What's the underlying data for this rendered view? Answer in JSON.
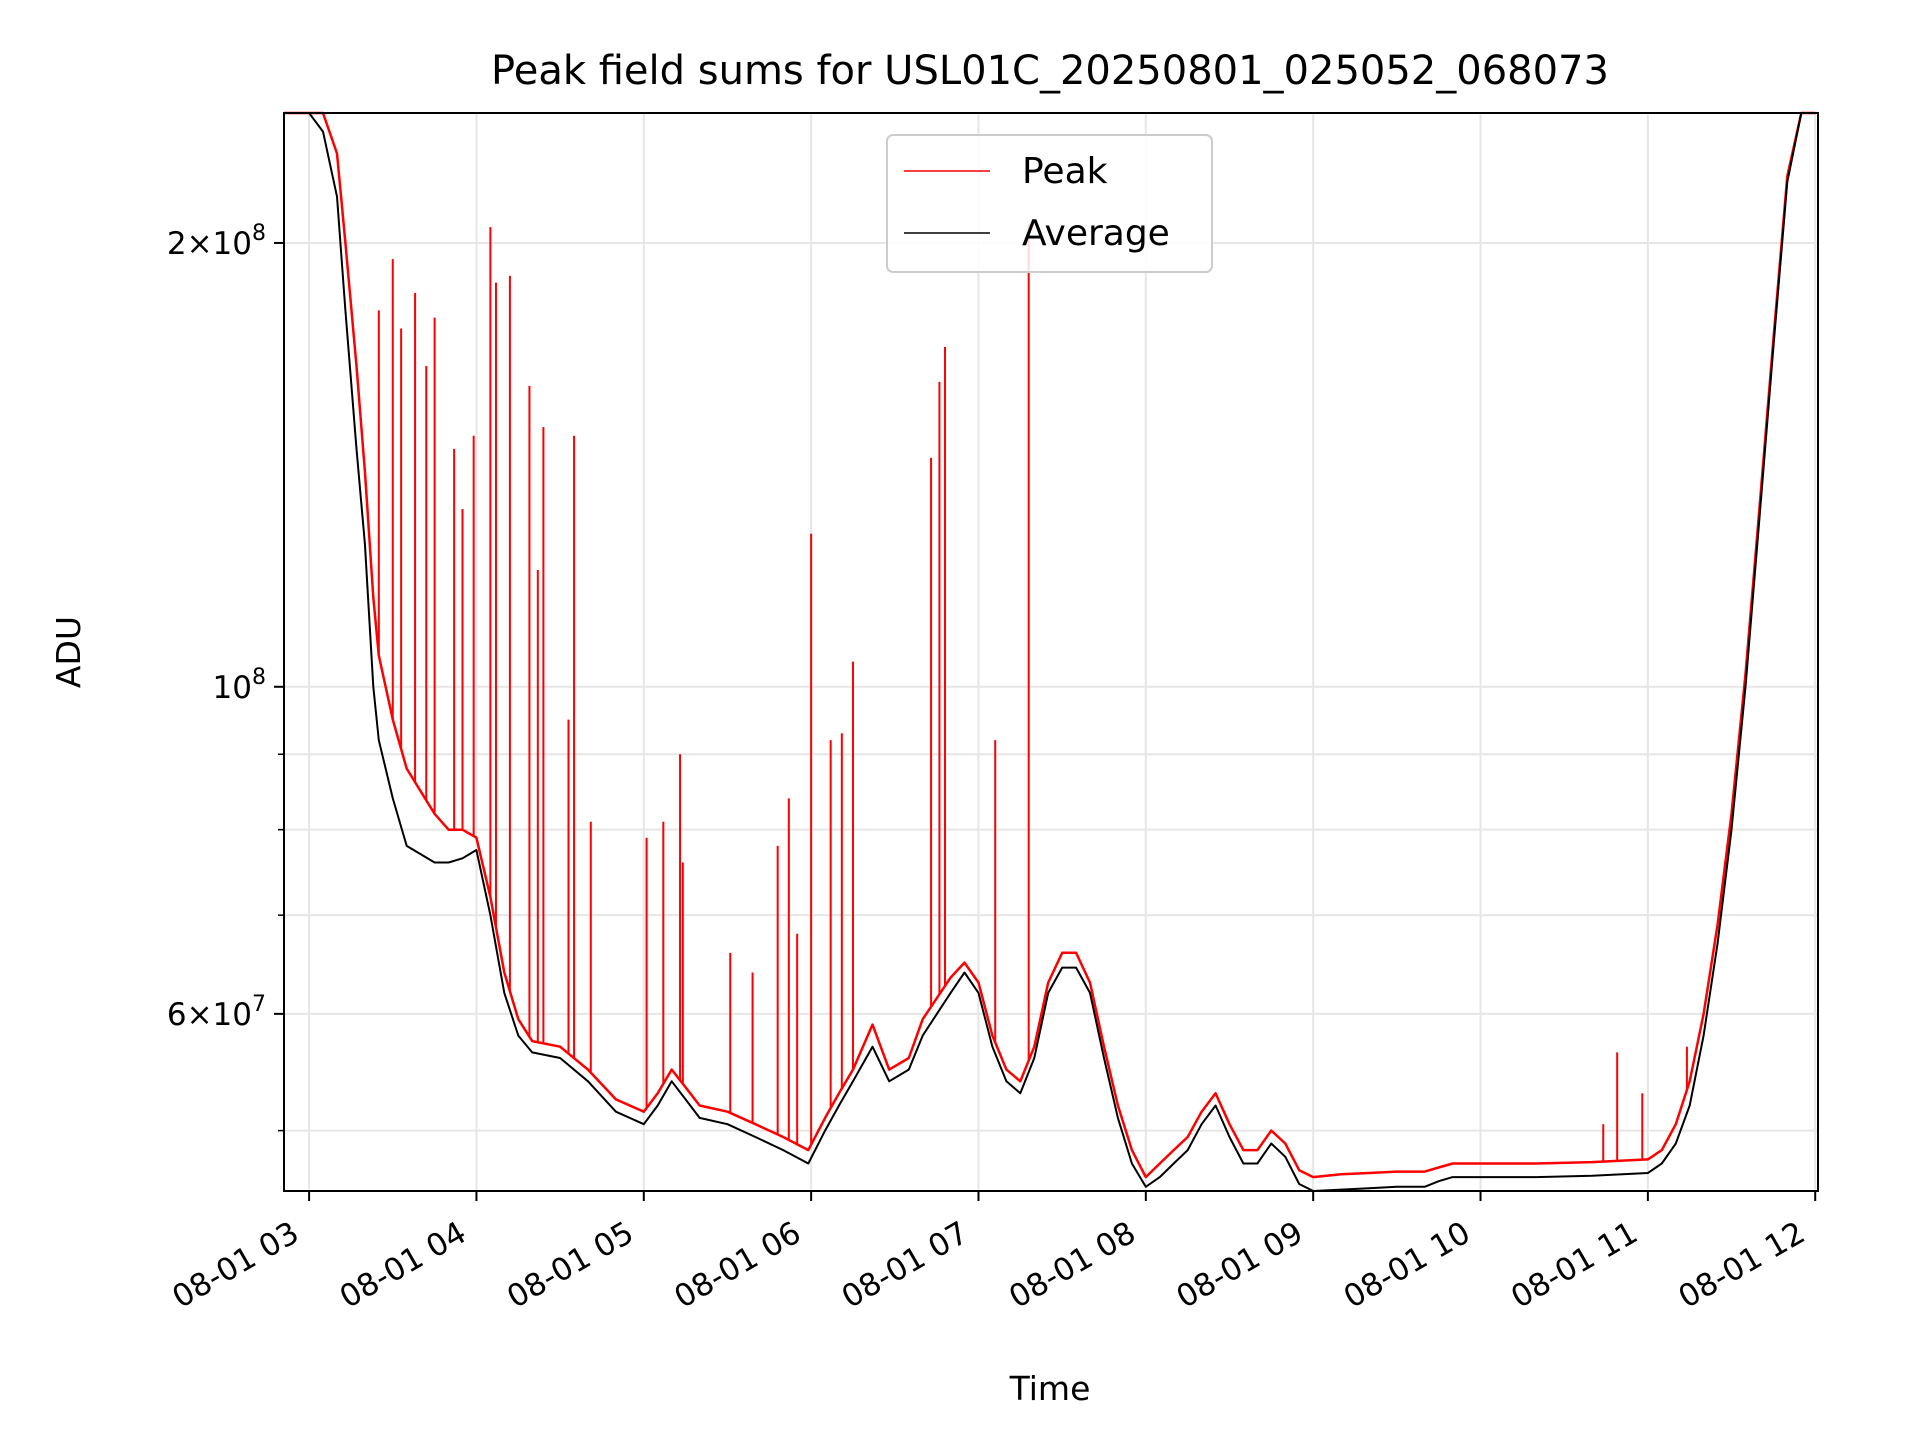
{
  "chart_data": {
    "type": "line",
    "title": "Peak field sums for USL01C_20250801_025052_068073",
    "xlabel": "Time",
    "ylabel": "ADU",
    "yscale": "log",
    "grid": true,
    "legend_placement": "upper-center",
    "xlim": [
      "2025-08-01 02:51",
      "2025-08-01 12:01"
    ],
    "ylim": [
      45500000,
      245000000
    ],
    "x_ticks": [
      "08-01 03",
      "08-01 04",
      "08-01 05",
      "08-01 06",
      "08-01 07",
      "08-01 08",
      "08-01 09",
      "08-01 10",
      "08-01 11",
      "08-01 12"
    ],
    "y_major_ticks": [
      {
        "value": 200000000,
        "label": "2×10^8"
      },
      {
        "value": 100000000,
        "label": "10^8"
      },
      {
        "value": 60000000,
        "label": "6×10^7"
      }
    ],
    "y_minor_ticks": [
      50000000,
      70000000,
      80000000,
      90000000
    ],
    "series": [
      {
        "name": "Average",
        "color": "#000000",
        "x": [
          "02:51",
          "03:00",
          "03:05",
          "03:10",
          "03:13",
          "03:17",
          "03:20",
          "03:23",
          "03:25",
          "03:30",
          "03:35",
          "03:45",
          "03:50",
          "03:55",
          "04:00",
          "04:05",
          "04:10",
          "04:15",
          "04:20",
          "04:30",
          "04:40",
          "04:50",
          "05:00",
          "05:05",
          "05:10",
          "05:15",
          "05:20",
          "05:30",
          "05:40",
          "05:50",
          "05:59",
          "06:05",
          "06:10",
          "06:15",
          "06:22",
          "06:28",
          "06:35",
          "06:40",
          "06:50",
          "06:55",
          "07:00",
          "07:05",
          "07:10",
          "07:15",
          "07:20",
          "07:25",
          "07:30",
          "07:35",
          "07:40",
          "07:45",
          "07:50",
          "07:55",
          "08:00",
          "08:05",
          "08:10",
          "08:15",
          "08:20",
          "08:25",
          "08:30",
          "08:35",
          "08:40",
          "08:45",
          "08:50",
          "08:55",
          "09:00",
          "09:10",
          "09:20",
          "09:30",
          "09:40",
          "09:45",
          "09:50",
          "10:00",
          "10:20",
          "10:40",
          "11:00",
          "11:05",
          "11:10",
          "11:15",
          "11:20",
          "11:25",
          "11:30",
          "11:35",
          "11:40",
          "11:45",
          "11:50",
          "11:55",
          "12:00"
        ],
        "y": [
          245000000,
          245000000,
          238000000,
          215000000,
          180000000,
          145000000,
          125000000,
          100000000,
          92000000,
          84000000,
          78000000,
          76000000,
          76000000,
          76500000,
          77500000,
          70000000,
          62000000,
          58000000,
          56500000,
          56000000,
          54000000,
          51500000,
          50500000,
          52000000,
          54000000,
          52500000,
          51000000,
          50500000,
          49500000,
          48500000,
          47500000,
          50000000,
          52000000,
          54000000,
          57000000,
          54000000,
          55000000,
          58000000,
          62000000,
          64000000,
          62000000,
          57000000,
          54000000,
          53000000,
          56000000,
          62000000,
          64500000,
          64500000,
          62000000,
          56000000,
          51000000,
          47500000,
          45800000,
          46500000,
          47500000,
          48500000,
          50500000,
          52000000,
          49500000,
          47500000,
          47500000,
          49000000,
          48000000,
          46000000,
          45500000,
          45600000,
          45700000,
          45800000,
          45800000,
          46200000,
          46500000,
          46500000,
          46500000,
          46600000,
          46800000,
          47500000,
          49000000,
          52000000,
          58000000,
          67000000,
          80000000,
          100000000,
          130000000,
          170000000,
          220000000,
          245000000,
          245000000
        ]
      },
      {
        "name": "Peak",
        "color": "#ff0000",
        "x": [
          "02:51",
          "03:00",
          "03:05",
          "03:10",
          "03:13",
          "03:17",
          "03:20",
          "03:23",
          "03:25",
          "03:30",
          "03:35",
          "03:45",
          "03:50",
          "03:55",
          "04:00",
          "04:05",
          "04:10",
          "04:15",
          "04:20",
          "04:30",
          "04:40",
          "04:50",
          "05:00",
          "05:05",
          "05:10",
          "05:15",
          "05:20",
          "05:30",
          "05:40",
          "05:50",
          "05:59",
          "06:05",
          "06:10",
          "06:15",
          "06:22",
          "06:28",
          "06:35",
          "06:40",
          "06:50",
          "06:55",
          "07:00",
          "07:05",
          "07:10",
          "07:15",
          "07:20",
          "07:25",
          "07:30",
          "07:35",
          "07:40",
          "07:45",
          "07:50",
          "07:55",
          "08:00",
          "08:05",
          "08:10",
          "08:15",
          "08:20",
          "08:25",
          "08:30",
          "08:35",
          "08:40",
          "08:45",
          "08:50",
          "08:55",
          "09:00",
          "09:10",
          "09:20",
          "09:30",
          "09:40",
          "09:45",
          "09:50",
          "10:00",
          "10:20",
          "10:40",
          "11:00",
          "11:05",
          "11:10",
          "11:15",
          "11:20",
          "11:25",
          "11:30",
          "11:35",
          "11:40",
          "11:45",
          "11:50",
          "11:55",
          "12:00"
        ],
        "y": [
          245000000,
          245000000,
          245000000,
          230000000,
          200000000,
          165000000,
          140000000,
          115000000,
          105000000,
          95000000,
          88000000,
          82000000,
          80000000,
          80000000,
          79000000,
          72000000,
          64000000,
          59500000,
          57500000,
          57000000,
          55000000,
          52500000,
          51500000,
          53000000,
          55000000,
          53500000,
          52000000,
          51500000,
          50500000,
          49500000,
          48500000,
          51000000,
          53000000,
          55000000,
          59000000,
          55000000,
          56000000,
          59500000,
          63500000,
          65000000,
          63000000,
          58000000,
          55000000,
          54000000,
          57000000,
          63000000,
          66000000,
          66000000,
          63000000,
          57000000,
          52000000,
          48500000,
          46500000,
          47500000,
          48500000,
          49500000,
          51500000,
          53000000,
          50500000,
          48500000,
          48500000,
          50000000,
          49000000,
          47000000,
          46500000,
          46700000,
          46800000,
          46900000,
          46900000,
          47200000,
          47500000,
          47500000,
          47500000,
          47600000,
          47800000,
          48500000,
          50500000,
          54000000,
          60000000,
          69000000,
          82000000,
          102000000,
          132000000,
          172000000,
          222000000,
          245000000,
          245000000
        ]
      }
    ],
    "spikes": {
      "series": "Peak",
      "x": [
        "03:25",
        "03:30",
        "03:33",
        "03:38",
        "03:42",
        "03:45",
        "03:52",
        "03:55",
        "03:59",
        "04:05",
        "04:07",
        "04:12",
        "04:19",
        "04:22",
        "04:24",
        "04:33",
        "04:35",
        "04:41",
        "05:01",
        "05:07",
        "05:13",
        "05:14",
        "05:31",
        "05:39",
        "05:48",
        "05:52",
        "05:55",
        "06:00",
        "06:07",
        "06:11",
        "06:15",
        "06:43",
        "06:46",
        "06:48",
        "07:06",
        "07:18",
        "10:44",
        "10:49",
        "10:58",
        "11:14"
      ],
      "y": [
        180000000,
        195000000,
        175000000,
        185000000,
        165000000,
        178000000,
        145000000,
        132000000,
        148000000,
        205000000,
        188000000,
        190000000,
        160000000,
        120000000,
        150000000,
        95000000,
        148000000,
        81000000,
        79000000,
        81000000,
        90000000,
        76000000,
        66000000,
        64000000,
        78000000,
        84000000,
        68000000,
        127000000,
        92000000,
        93000000,
        104000000,
        143000000,
        161000000,
        170000000,
        92000000,
        206000000,
        50500000,
        56500000,
        53000000,
        57000000
      ]
    }
  }
}
